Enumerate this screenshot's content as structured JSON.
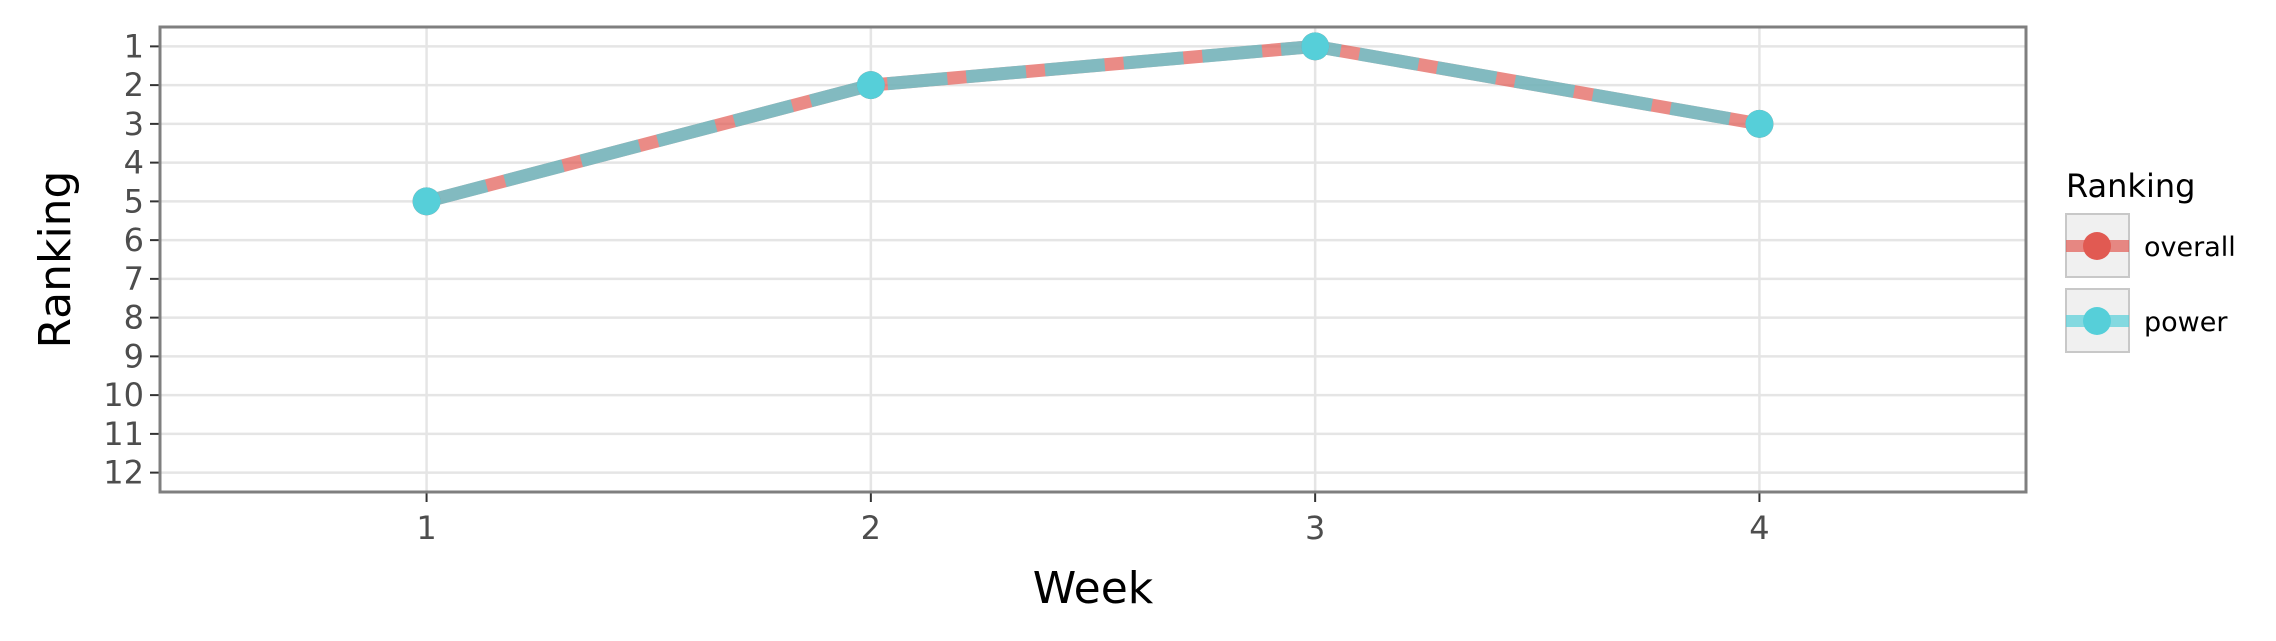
{
  "chart_data": {
    "type": "line",
    "title": "",
    "xlabel": "Week",
    "ylabel": "Ranking",
    "x": [
      1,
      2,
      3,
      4
    ],
    "x_ticks": [
      "1",
      "2",
      "3",
      "4"
    ],
    "xlim": [
      0.4,
      4.6
    ],
    "y_ticks": [
      "1",
      "2",
      "3",
      "4",
      "5",
      "6",
      "7",
      "8",
      "9",
      "10",
      "11",
      "12"
    ],
    "ylim": [
      12.5,
      0.5
    ],
    "y_reversed": true,
    "grid": true,
    "legend": {
      "title": "Ranking",
      "position": "right"
    },
    "series": [
      {
        "name": "overall",
        "values": [
          5,
          2,
          1,
          3
        ],
        "color": "#e15a52",
        "linestyle": "dashed"
      },
      {
        "name": "power",
        "values": [
          5,
          2,
          1,
          3
        ],
        "color": "#56cfd9",
        "linestyle": "solid"
      }
    ]
  }
}
